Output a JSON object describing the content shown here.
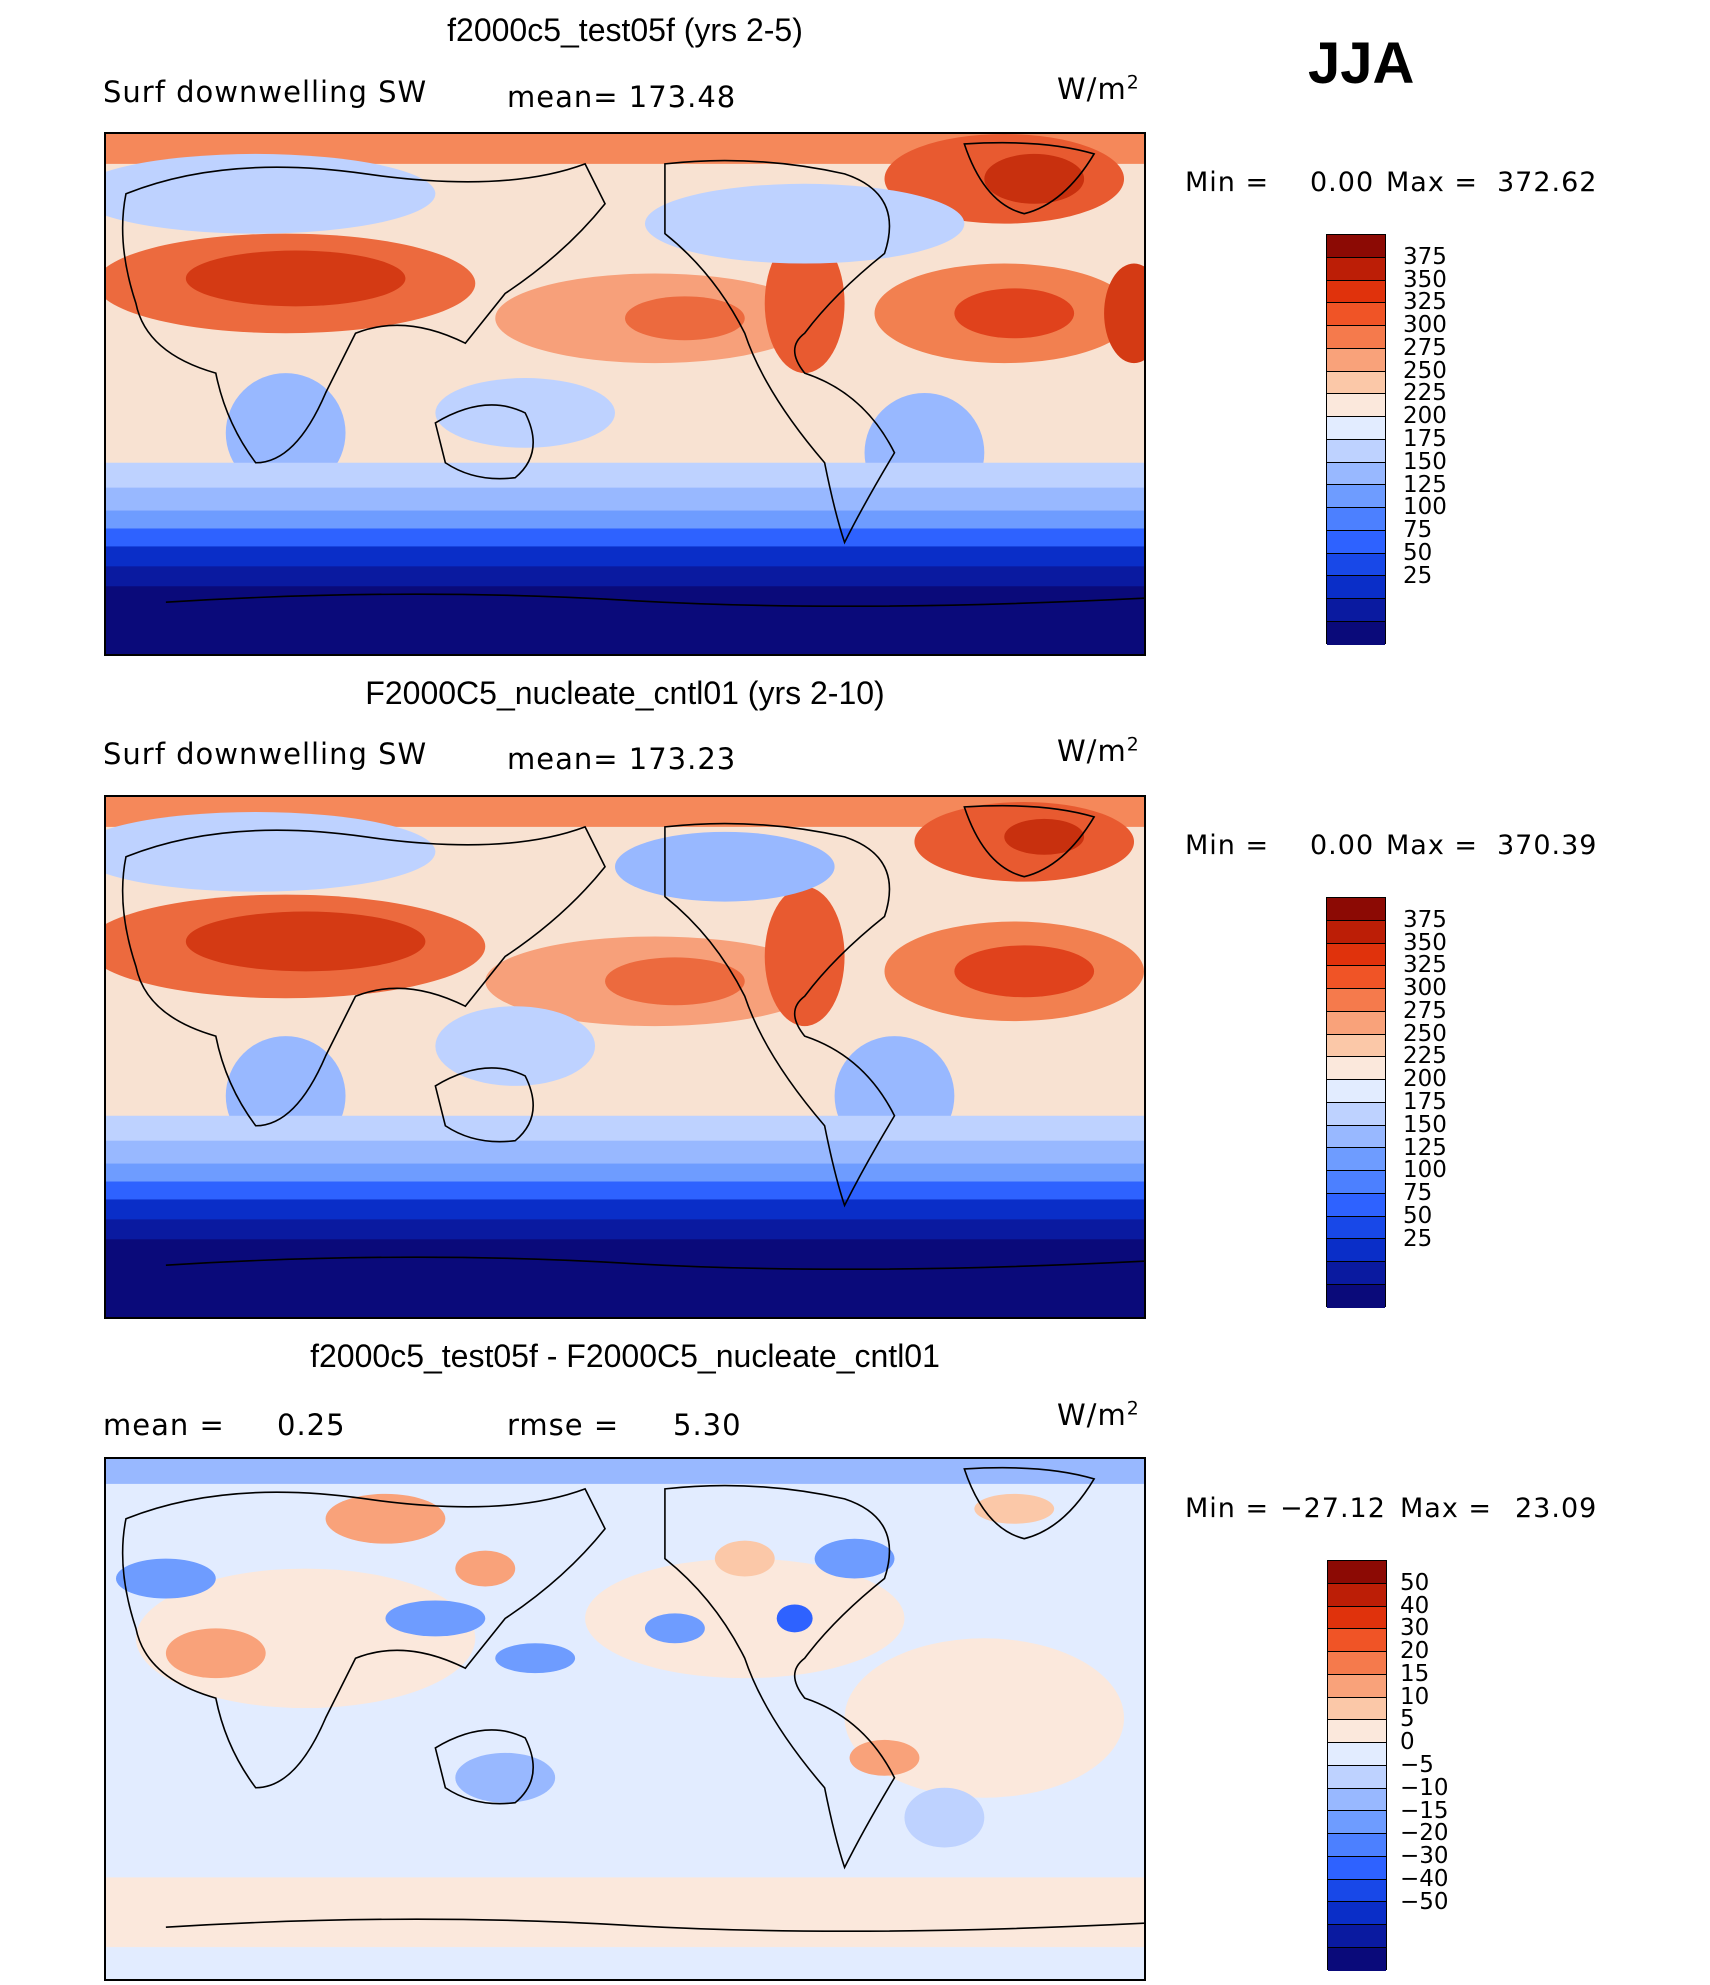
{
  "season": "JJA",
  "colorbar_colors": [
    "#0a0a7a",
    "#0a1aa0",
    "#0a2ec8",
    "#1848e8",
    "#2e62ff",
    "#4c80ff",
    "#6e9cff",
    "#98b8ff",
    "#bed2ff",
    "#e2ecff",
    "#fbe8dc",
    "#fbc8a8",
    "#f9a27a",
    "#f57a4c",
    "#f05426",
    "#e0320c",
    "#bc1e06",
    "#8c0a04"
  ],
  "panels": [
    {
      "title": "f2000c5_test05f (yrs 2-5)",
      "left_label": "Surf  downwelling  SW",
      "center_label": "mean=  173.48",
      "units": "W/m",
      "units_sup": "2",
      "min_label": "Min  =",
      "min_value": "0.00",
      "max_label": "Max  =",
      "max_value": "372.62",
      "levels": [
        "375",
        "350",
        "325",
        "300",
        "275",
        "250",
        "225",
        "200",
        "175",
        "150",
        "125",
        "100",
        "75",
        "50",
        "25"
      ]
    },
    {
      "title": "F2000C5_nucleate_cntl01 (yrs 2-10)",
      "left_label": "Surf  downwelling  SW",
      "center_label": "mean=  173.23",
      "units": "W/m",
      "units_sup": "2",
      "min_label": "Min  =",
      "min_value": "0.00",
      "max_label": "Max  =",
      "max_value": "370.39",
      "levels": [
        "375",
        "350",
        "325",
        "300",
        "275",
        "250",
        "225",
        "200",
        "175",
        "150",
        "125",
        "100",
        "75",
        "50",
        "25"
      ]
    },
    {
      "title": "f2000c5_test05f - F2000C5_nucleate_cntl01",
      "left_label": "mean  =",
      "left_value": "0.25",
      "center_label": "rmse  =",
      "center_value": "5.30",
      "units": "W/m",
      "units_sup": "2",
      "min_label": "Min  =",
      "min_value": "−27.12",
      "max_label": "Max  =",
      "max_value": "23.09",
      "levels": [
        "50",
        "40",
        "30",
        "20",
        "15",
        "10",
        "5",
        "0",
        "−5",
        "−10",
        "−15",
        "−20",
        "−30",
        "−40",
        "−50"
      ]
    }
  ],
  "chart_data": [
    {
      "type": "heatmap",
      "title": "f2000c5_test05f (yrs 2-5)",
      "variable": "Surf  downwelling  SW",
      "season": "JJA",
      "units": "W/m2",
      "mean": 173.48,
      "min": 0.0,
      "max": 372.62,
      "contour_levels": [
        25,
        50,
        75,
        100,
        125,
        150,
        175,
        200,
        225,
        250,
        275,
        300,
        325,
        350,
        375
      ],
      "colormap": "blue-white-red",
      "projection": "global cylindrical equidistant, Pacific-centered"
    },
    {
      "type": "heatmap",
      "title": "F2000C5_nucleate_cntl01 (yrs 2-10)",
      "variable": "Surf  downwelling  SW",
      "season": "JJA",
      "units": "W/m2",
      "mean": 173.23,
      "min": 0.0,
      "max": 370.39,
      "contour_levels": [
        25,
        50,
        75,
        100,
        125,
        150,
        175,
        200,
        225,
        250,
        275,
        300,
        325,
        350,
        375
      ],
      "colormap": "blue-white-red",
      "projection": "global cylindrical equidistant, Pacific-centered"
    },
    {
      "type": "heatmap",
      "title": "f2000c5_test05f - F2000C5_nucleate_cntl01",
      "season": "JJA",
      "units": "W/m2",
      "mean": 0.25,
      "rmse": 5.3,
      "min": -27.12,
      "max": 23.09,
      "contour_levels": [
        -50,
        -40,
        -30,
        -20,
        -15,
        -10,
        -5,
        0,
        5,
        10,
        15,
        20,
        30,
        40,
        50
      ],
      "colormap": "blue-white-red",
      "projection": "global cylindrical equidistant, Pacific-centered"
    }
  ]
}
